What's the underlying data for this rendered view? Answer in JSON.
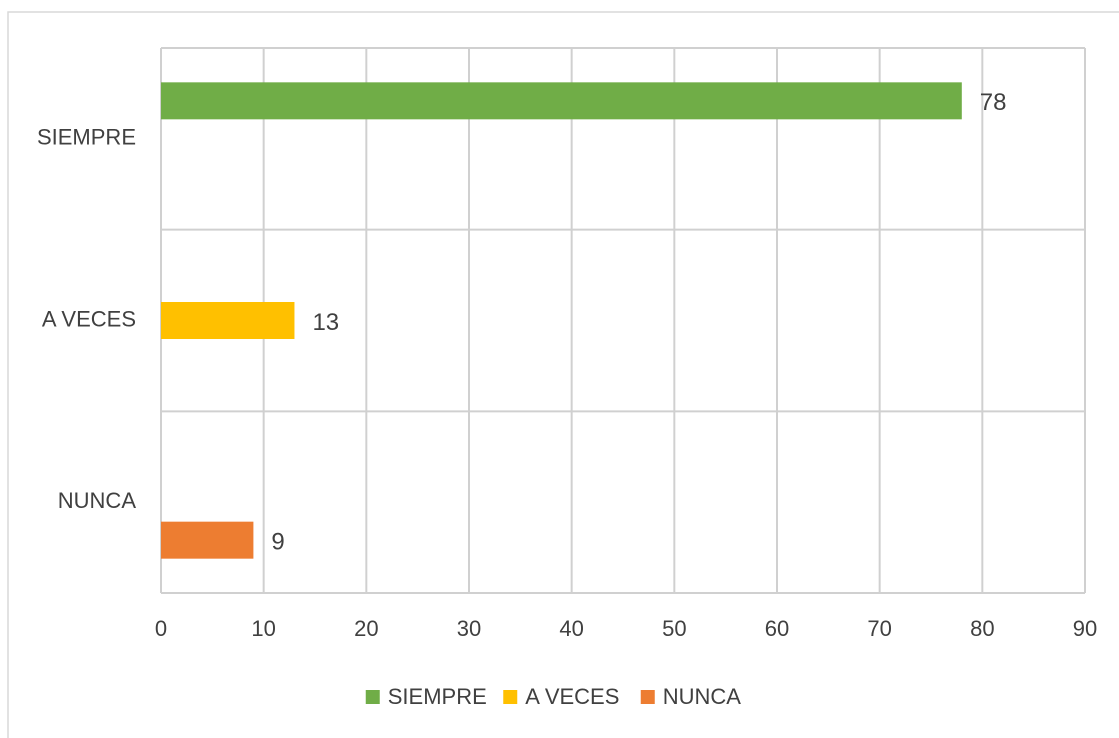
{
  "chart_data": {
    "type": "hbar",
    "categories": [
      "SIEMPRE",
      "A VECES",
      "NUNCA"
    ],
    "series": [
      {
        "name": "SIEMPRE",
        "color": "#70ad47",
        "values": [
          78,
          null,
          null
        ]
      },
      {
        "name": "A VECES",
        "color": "#ffc000",
        "values": [
          null,
          13,
          null
        ]
      },
      {
        "name": "NUNCA",
        "color": "#ed7d31",
        "values": [
          null,
          null,
          9
        ]
      }
    ],
    "xlim": [
      0,
      90
    ],
    "xticks": [
      0,
      10,
      20,
      30,
      40,
      50,
      60,
      70,
      80,
      90
    ],
    "grid": true,
    "legend": "bottom",
    "data_labels": true
  }
}
